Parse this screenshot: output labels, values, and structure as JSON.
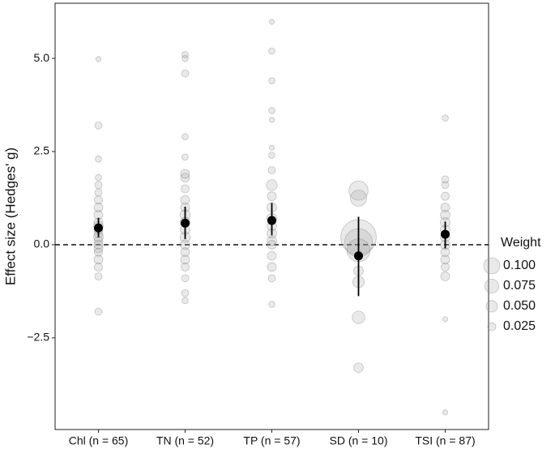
{
  "chart_data": {
    "type": "scatter",
    "y_label": "Effect size (Hedges' g)",
    "categories": [
      "Chl (n = 65)",
      "TN (n = 52)",
      "TP (n = 57)",
      "SD (n = 10)",
      "TSI (n = 87)"
    ],
    "ylim": [
      -4.96,
      6.48
    ],
    "yticks": [
      {
        "value": -2.5,
        "label": "−2.5"
      },
      {
        "value": 0,
        "label": "0.0"
      },
      {
        "value": 2.5,
        "label": "2.5"
      },
      {
        "value": 5,
        "label": "5.0"
      }
    ],
    "reference_line": 0,
    "studies": [
      {
        "values": [
          4.98,
          3.2,
          2.3,
          1.8,
          1.6,
          1.4,
          1.2,
          1.0,
          0.8,
          0.6,
          0.5,
          0.4,
          0.3,
          0.2,
          0.1,
          0.0,
          -0.1,
          -0.2,
          -0.4,
          -0.6,
          -0.85,
          -1.8
        ],
        "weights": [
          0.01,
          0.02,
          0.015,
          0.015,
          0.02,
          0.02,
          0.025,
          0.03,
          0.03,
          0.03,
          0.035,
          0.03,
          0.03,
          0.035,
          0.03,
          0.03,
          0.03,
          0.025,
          0.03,
          0.025,
          0.02,
          0.02
        ]
      },
      {
        "values": [
          5.1,
          5.0,
          4.6,
          2.9,
          2.35,
          1.9,
          1.8,
          1.5,
          1.2,
          1.0,
          0.8,
          0.6,
          0.4,
          0.2,
          0.0,
          -0.2,
          -0.4,
          -0.6,
          -0.9,
          -1.3,
          -1.5
        ],
        "weights": [
          0.015,
          0.015,
          0.02,
          0.015,
          0.015,
          0.03,
          0.03,
          0.025,
          0.03,
          0.03,
          0.04,
          0.04,
          0.035,
          0.04,
          0.035,
          0.03,
          0.03,
          0.025,
          0.02,
          0.02,
          0.015
        ]
      },
      {
        "values": [
          5.98,
          5.2,
          4.4,
          3.6,
          3.35,
          2.6,
          2.4,
          2.0,
          1.6,
          1.3,
          1.0,
          0.7,
          0.5,
          0.3,
          0.1,
          0.0,
          -0.3,
          -0.6,
          -0.9,
          -1.6
        ],
        "weights": [
          0.01,
          0.015,
          0.015,
          0.015,
          0.01,
          0.01,
          0.015,
          0.02,
          0.045,
          0.03,
          0.035,
          0.04,
          0.035,
          0.035,
          0.035,
          0.03,
          0.03,
          0.03,
          0.02,
          0.015
        ]
      },
      {
        "values": [
          1.45,
          1.25,
          0.2,
          0.05,
          -0.15,
          -0.7,
          -1.0,
          -1.95,
          -3.3
        ],
        "weights": [
          0.14,
          0.1,
          0.48,
          0.3,
          0.2,
          0.035,
          0.05,
          0.06,
          0.035
        ]
      },
      {
        "values": [
          3.4,
          1.75,
          1.6,
          1.3,
          1.0,
          0.8,
          0.6,
          0.4,
          0.2,
          0.0,
          -0.2,
          -0.4,
          -0.6,
          -0.85,
          -2.0,
          -4.5
        ],
        "weights": [
          0.015,
          0.02,
          0.02,
          0.025,
          0.03,
          0.035,
          0.035,
          0.035,
          0.035,
          0.035,
          0.03,
          0.03,
          0.025,
          0.03,
          0.01,
          0.01
        ]
      }
    ],
    "estimates": {
      "values": [
        0.45,
        0.58,
        0.65,
        -0.3,
        0.28
      ],
      "lower": [
        0.2,
        0.15,
        0.25,
        -1.38,
        -0.1
      ],
      "upper": [
        0.72,
        1.02,
        1.12,
        0.75,
        0.62
      ]
    },
    "size_legend": {
      "title": "Weight",
      "values": [
        {
          "value": 0.1,
          "label": "0.100"
        },
        {
          "value": 0.075,
          "label": "0.075"
        },
        {
          "value": 0.05,
          "label": "0.050"
        },
        {
          "value": 0.025,
          "label": "0.025"
        }
      ]
    }
  }
}
